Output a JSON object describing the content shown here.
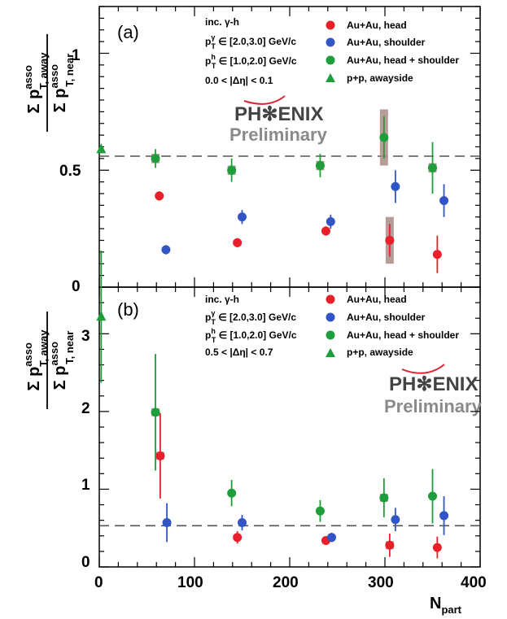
{
  "chart_data": [
    {
      "type": "scatter",
      "panel_label": "(a)",
      "ylabel_num_pre": "Σ p",
      "ylabel_num_sup": "asso",
      "ylabel_num_sub": "T, away",
      "ylabel_den_pre": "Σ p",
      "ylabel_den_sup": "asso",
      "ylabel_den_sub": "T, near",
      "xlim": [
        0,
        400
      ],
      "ylim": [
        0,
        1.2
      ],
      "yticks": [
        0,
        0.5,
        1
      ],
      "ytick_labels": [
        "0",
        "0.5",
        "1"
      ],
      "reference_line": 0.56,
      "cuts": [
        {
          "pre": "inc. γ-h",
          "sup": "",
          "sub": "",
          "post": ""
        },
        {
          "pre": "p",
          "sup": "γ",
          "sub": "T",
          "post": " ∈ [2.0,3.0] GeV/c"
        },
        {
          "pre": "p",
          "sup": "h",
          "sub": "T",
          "post": " ∈ [1.0,2.0] GeV/c"
        },
        {
          "pre": "0.0 < |Δη| < 0.1",
          "sup": "",
          "sub": "",
          "post": ""
        }
      ],
      "legend": [
        {
          "label": "Au+Au, head",
          "color": "#e8202a",
          "marker": "circle"
        },
        {
          "label": "Au+Au, shoulder",
          "color": "#3155c4",
          "marker": "circle"
        },
        {
          "label": "Au+Au, head + shoulder",
          "color": "#1e9e3a",
          "marker": "circle"
        },
        {
          "label": "p+p, awayside",
          "color": "#1e9e3a",
          "marker": "triangle"
        }
      ],
      "logo_line1": "PH✻ENIX",
      "logo_line2": "Preliminary",
      "series": [
        {
          "name": "Au+Au, head",
          "color": "#e8202a",
          "marker": "circle",
          "points": [
            {
              "x": 63,
              "y": 0.39,
              "err": 0.02,
              "sys": 0.01
            },
            {
              "x": 145,
              "y": 0.19,
              "err": 0.02,
              "sys": 0.01
            },
            {
              "x": 238,
              "y": 0.24,
              "err": 0.02,
              "sys": 0.01
            },
            {
              "x": 305,
              "y": 0.2,
              "err": 0.07,
              "sys": 0.1
            },
            {
              "x": 355,
              "y": 0.14,
              "err": 0.08,
              "sys": 0.01
            }
          ]
        },
        {
          "name": "Au+Au, shoulder",
          "color": "#3155c4",
          "marker": "circle",
          "points": [
            {
              "x": 70,
              "y": 0.16,
              "err": 0.02,
              "sys": 0.0
            },
            {
              "x": 150,
              "y": 0.3,
              "err": 0.03,
              "sys": 0.0
            },
            {
              "x": 243,
              "y": 0.28,
              "err": 0.03,
              "sys": 0.0
            },
            {
              "x": 311,
              "y": 0.43,
              "err": 0.07,
              "sys": 0.0
            },
            {
              "x": 362,
              "y": 0.37,
              "err": 0.07,
              "sys": 0.0
            }
          ]
        },
        {
          "name": "Au+Au, head + shoulder",
          "color": "#1e9e3a",
          "marker": "circle",
          "points": [
            {
              "x": 59,
              "y": 0.55,
              "err": 0.04,
              "sys": 0.02
            },
            {
              "x": 139,
              "y": 0.5,
              "err": 0.05,
              "sys": 0.02
            },
            {
              "x": 232,
              "y": 0.52,
              "err": 0.05,
              "sys": 0.02
            },
            {
              "x": 299,
              "y": 0.64,
              "err": 0.09,
              "sys": 0.12
            },
            {
              "x": 350,
              "y": 0.51,
              "err": 0.11,
              "sys": 0.02
            }
          ]
        },
        {
          "name": "p+p, awayside",
          "color": "#1e9e3a",
          "marker": "triangle",
          "points": [
            {
              "x": 2,
              "y": 0.59,
              "err": 0.0,
              "sys": 0.0
            }
          ]
        }
      ]
    },
    {
      "type": "scatter",
      "panel_label": "(b)",
      "ylabel_num_pre": "Σ p",
      "ylabel_num_sup": "asso",
      "ylabel_num_sub": "T, away",
      "ylabel_den_pre": "Σ p",
      "ylabel_den_sup": "asso",
      "ylabel_den_sub": "T, near",
      "xlabel_pre": "N",
      "xlabel_sub": "part",
      "xlim": [
        0,
        400
      ],
      "ylim": [
        0,
        3.6
      ],
      "xticks": [
        0,
        100,
        200,
        300,
        400
      ],
      "xtick_labels": [
        "0",
        "100",
        "200",
        "300",
        "400"
      ],
      "yticks": [
        0,
        1,
        2,
        3
      ],
      "ytick_labels": [
        "0",
        "1",
        "2",
        "3"
      ],
      "reference_line": 0.53,
      "cuts": [
        {
          "pre": "inc. γ-h",
          "sup": "",
          "sub": "",
          "post": ""
        },
        {
          "pre": "p",
          "sup": "γ",
          "sub": "T",
          "post": " ∈ [2.0,3.0] GeV/c"
        },
        {
          "pre": "p",
          "sup": "h",
          "sub": "T",
          "post": " ∈ [1.0,2.0] GeV/c"
        },
        {
          "pre": "0.5 < |Δη| < 0.7",
          "sup": "",
          "sub": "",
          "post": ""
        }
      ],
      "legend": [
        {
          "label": "Au+Au, head",
          "color": "#e8202a",
          "marker": "circle"
        },
        {
          "label": "Au+Au, shoulder",
          "color": "#3155c4",
          "marker": "circle"
        },
        {
          "label": "Au+Au, head + shoulder",
          "color": "#1e9e3a",
          "marker": "circle"
        },
        {
          "label": "p+p, awayside",
          "color": "#1e9e3a",
          "marker": "triangle"
        }
      ],
      "logo_line1": "PH✻ENIX",
      "logo_line2": "Preliminary",
      "series": [
        {
          "name": "Au+Au, head",
          "color": "#e8202a",
          "marker": "circle",
          "points": [
            {
              "x": 64,
              "y": 1.43,
              "err": 0.55,
              "sys": 0.05
            },
            {
              "x": 145,
              "y": 0.38,
              "err": 0.08,
              "sys": 0.02
            },
            {
              "x": 238,
              "y": 0.34,
              "err": 0.04,
              "sys": 0.02
            },
            {
              "x": 305,
              "y": 0.28,
              "err": 0.15,
              "sys": 0.05
            },
            {
              "x": 355,
              "y": 0.25,
              "err": 0.14,
              "sys": 0.02
            }
          ]
        },
        {
          "name": "Au+Au, shoulder",
          "color": "#3155c4",
          "marker": "circle",
          "points": [
            {
              "x": 71,
              "y": 0.57,
              "err": 0.25,
              "sys": 0.0
            },
            {
              "x": 150,
              "y": 0.57,
              "err": 0.1,
              "sys": 0.0
            },
            {
              "x": 244,
              "y": 0.38,
              "err": 0.06,
              "sys": 0.0
            },
            {
              "x": 311,
              "y": 0.61,
              "err": 0.15,
              "sys": 0.0
            },
            {
              "x": 362,
              "y": 0.66,
              "err": 0.25,
              "sys": 0.0
            }
          ]
        },
        {
          "name": "Au+Au, head + shoulder",
          "color": "#1e9e3a",
          "marker": "circle",
          "points": [
            {
              "x": 59,
              "y": 1.99,
              "err": 0.75,
              "sys": 0.05
            },
            {
              "x": 139,
              "y": 0.95,
              "err": 0.17,
              "sys": 0.02
            },
            {
              "x": 232,
              "y": 0.72,
              "err": 0.14,
              "sys": 0.02
            },
            {
              "x": 299,
              "y": 0.89,
              "err": 0.25,
              "sys": 0.05
            },
            {
              "x": 350,
              "y": 0.91,
              "err": 0.35,
              "sys": 0.02
            }
          ]
        },
        {
          "name": "p+p, awayside",
          "color": "#1e9e3a",
          "marker": "triangle",
          "points": [
            {
              "x": 2,
              "y": 3.22,
              "err": 0.85,
              "sys": 0.0
            }
          ]
        }
      ]
    }
  ]
}
